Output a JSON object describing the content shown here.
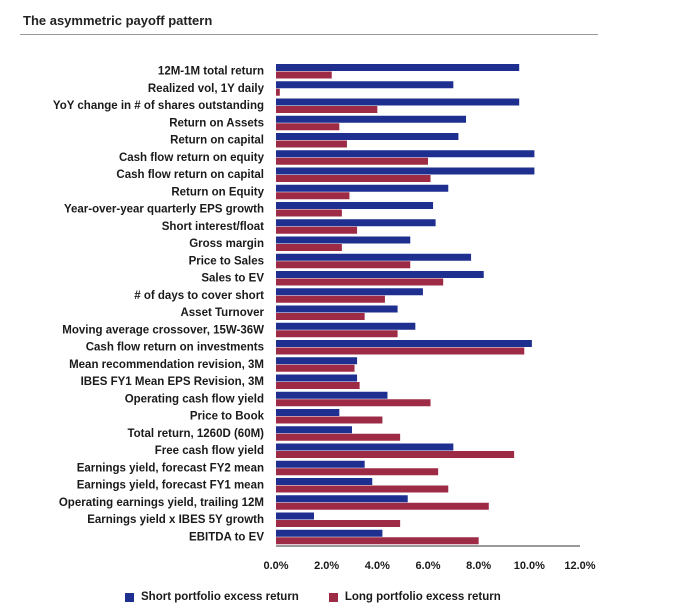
{
  "chart_data": {
    "type": "bar",
    "orientation": "horizontal",
    "title": "The asymmetric payoff pattern",
    "xlabel": "",
    "ylabel": "",
    "xlim": [
      0,
      12
    ],
    "x_ticks": [
      "0.0%",
      "2.0%",
      "4.0%",
      "6.0%",
      "8.0%",
      "10.0%",
      "12.0%"
    ],
    "grid": false,
    "legend_position": "bottom",
    "categories": [
      "12M-1M total return",
      "Realized vol, 1Y daily",
      "YoY change in # of shares outstanding",
      "Return on Assets",
      "Return on capital",
      "Cash flow return on equity",
      "Cash flow return on capital",
      "Return on Equity",
      "Year-over-year quarterly EPS growth",
      "Short interest/float",
      "Gross margin",
      "Price to Sales",
      "Sales to EV",
      "# of days to cover short",
      "Asset Turnover",
      "Moving average crossover, 15W-36W",
      "Cash flow return on investments",
      "Mean recommendation revision, 3M",
      "IBES FY1 Mean EPS Revision, 3M",
      "Operating cash flow yield",
      "Price to Book",
      "Total return, 1260D (60M)",
      "Free cash flow yield",
      "Earnings yield, forecast FY2 mean",
      "Earnings yield, forecast FY1 mean",
      "Operating earnings yield, trailing 12M",
      "Earnings yield x IBES 5Y growth",
      "EBITDA to EV"
    ],
    "series": [
      {
        "name": "Short portfolio excess return",
        "color": "#1f2f8f",
        "values": [
          9.6,
          7.0,
          9.6,
          7.5,
          7.2,
          10.2,
          10.2,
          6.8,
          6.2,
          6.3,
          5.3,
          7.7,
          8.2,
          5.8,
          4.8,
          5.5,
          10.1,
          3.2,
          3.2,
          4.4,
          2.5,
          3.0,
          7.0,
          3.5,
          3.8,
          5.2,
          1.5,
          4.2
        ]
      },
      {
        "name": "Long portfolio excess return",
        "color": "#9e2b45",
        "values": [
          2.2,
          0.15,
          4.0,
          2.5,
          2.8,
          6.0,
          6.1,
          2.9,
          2.6,
          3.2,
          2.6,
          5.3,
          6.6,
          4.3,
          3.5,
          4.8,
          9.8,
          3.1,
          3.3,
          6.1,
          4.2,
          4.9,
          9.4,
          6.4,
          6.8,
          8.4,
          4.9,
          8.0
        ]
      }
    ]
  }
}
